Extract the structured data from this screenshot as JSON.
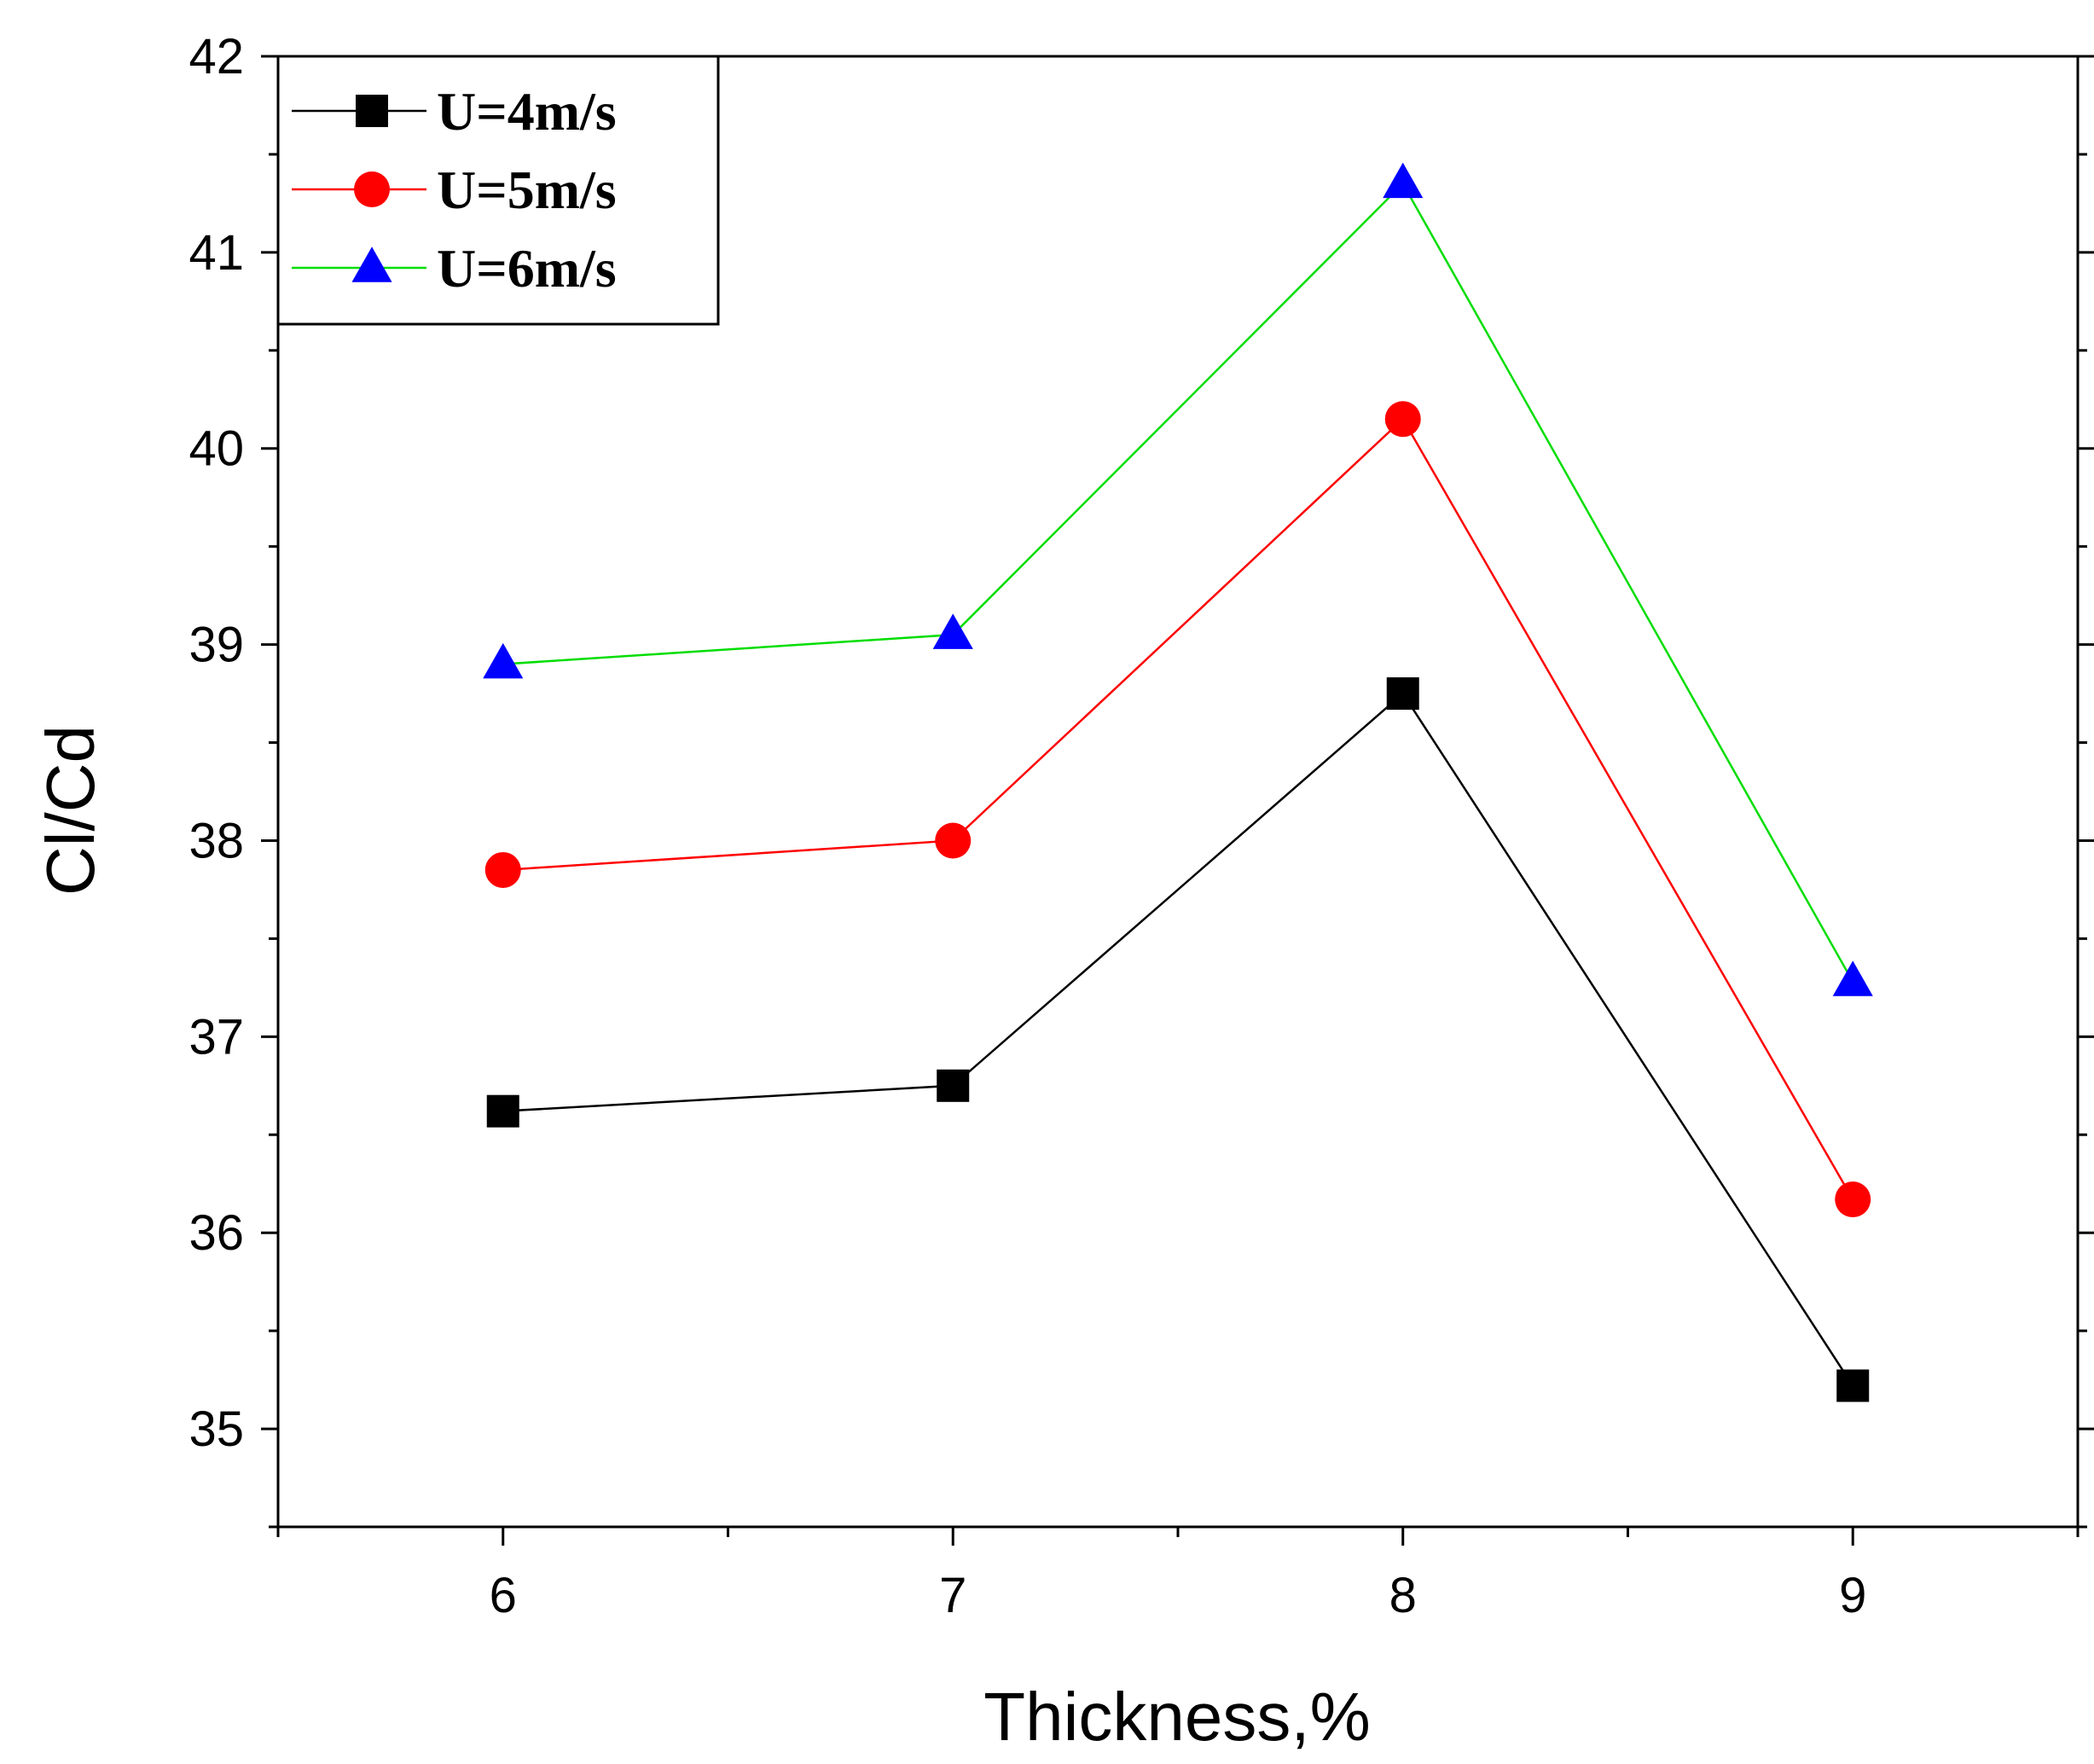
{
  "chart_data": {
    "type": "line",
    "title": "",
    "xlabel": "Thickness,%",
    "ylabel": "Cl/Cd",
    "x": [
      6,
      7,
      8,
      9
    ],
    "xlim": [
      5.5,
      9.5
    ],
    "ylim": [
      34.5,
      42
    ],
    "xticks": [
      "6",
      "7",
      "8",
      "9"
    ],
    "yticks": [
      "35",
      "36",
      "37",
      "38",
      "39",
      "40",
      "41",
      "42"
    ],
    "grid": false,
    "legend_position": "top-left",
    "series": [
      {
        "name": "U=4m/s",
        "color": "#000000",
        "marker": "square",
        "values": [
          36.62,
          36.75,
          38.75,
          35.22
        ]
      },
      {
        "name": "U=5m/s",
        "color": "#ff0000",
        "line_color": "#ff0000",
        "marker": "circle",
        "values": [
          37.85,
          38.0,
          40.15,
          36.17
        ]
      },
      {
        "name": "U=6m/s",
        "color": "#0000ff",
        "line_color": "#00dd00",
        "marker": "triangle",
        "values": [
          38.9,
          39.05,
          41.35,
          37.28
        ]
      }
    ]
  }
}
